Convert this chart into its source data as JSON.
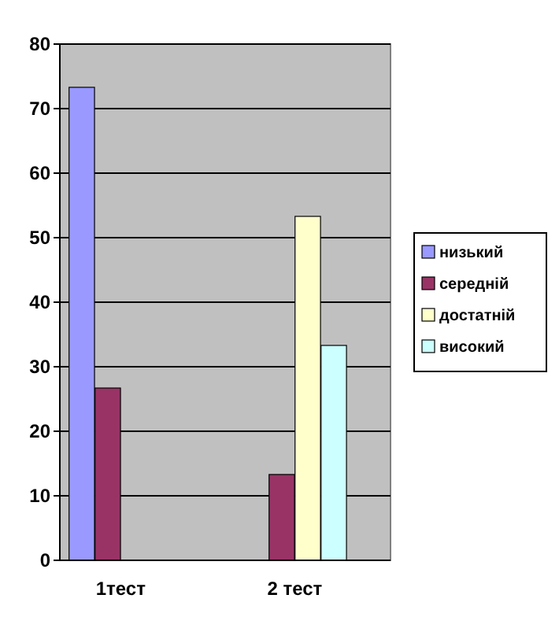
{
  "chart_data": {
    "type": "bar",
    "categories": [
      "1тест",
      "2 тест"
    ],
    "series": [
      {
        "name": "низький",
        "color": "#9999ff",
        "values": [
          73.3,
          0
        ]
      },
      {
        "name": "середній",
        "color": "#993366",
        "values": [
          26.7,
          13.3
        ]
      },
      {
        "name": "достатній",
        "color": "#ffffcc",
        "values": [
          0,
          53.3
        ]
      },
      {
        "name": "високий",
        "color": "#ccffff",
        "values": [
          0,
          33.3
        ]
      }
    ],
    "ylim": [
      0,
      80
    ],
    "yticks": [
      0,
      10,
      20,
      30,
      40,
      50,
      60,
      70,
      80
    ],
    "grid": "y",
    "legend": "right"
  }
}
